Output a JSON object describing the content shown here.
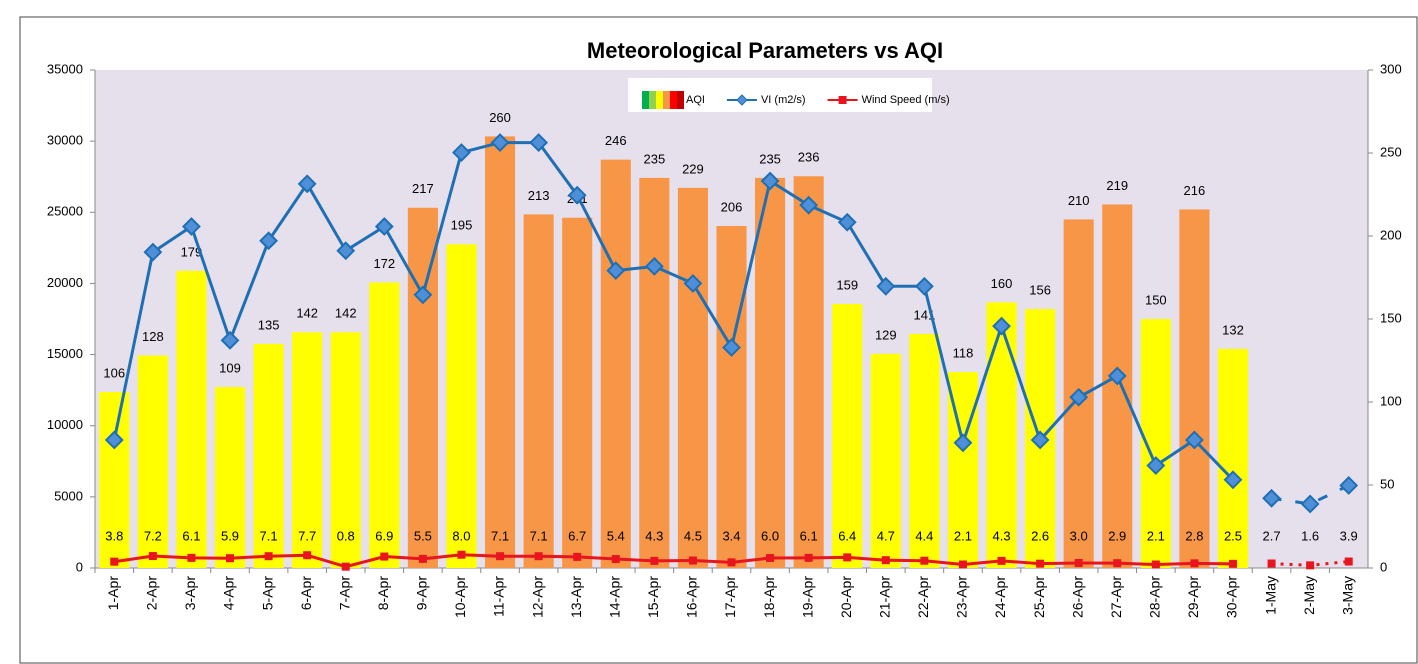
{
  "chart_data": {
    "type": "combo",
    "title": "Meteorological Parameters vs AQI",
    "categories": [
      "1-Apr",
      "2-Apr",
      "3-Apr",
      "4-Apr",
      "5-Apr",
      "6-Apr",
      "7-Apr",
      "8-Apr",
      "9-Apr",
      "10-Apr",
      "11-Apr",
      "12-Apr",
      "13-Apr",
      "14-Apr",
      "15-Apr",
      "16-Apr",
      "17-Apr",
      "18-Apr",
      "19-Apr",
      "20-Apr",
      "21-Apr",
      "22-Apr",
      "23-Apr",
      "24-Apr",
      "25-Apr",
      "26-Apr",
      "27-Apr",
      "28-Apr",
      "29-Apr",
      "30-Apr",
      "1-May",
      "2-May",
      "3-May"
    ],
    "ylim": [
      0,
      35000
    ],
    "yticks": [
      0,
      5000,
      10000,
      15000,
      20000,
      25000,
      30000,
      35000
    ],
    "y2lim": [
      0,
      300
    ],
    "y2ticks": [
      0,
      50,
      100,
      150,
      200,
      250,
      300
    ],
    "background": "#e6e0ec",
    "series": [
      {
        "name": "AQI",
        "type": "bar",
        "axis": "y2",
        "values": [
          106,
          128,
          179,
          109,
          135,
          142,
          142,
          172,
          217,
          195,
          260,
          213,
          211,
          246,
          235,
          229,
          206,
          235,
          236,
          159,
          129,
          141,
          118,
          160,
          156,
          210,
          219,
          150,
          216,
          132,
          null,
          null,
          null
        ],
        "colors": [
          "#ffff00",
          "#ffff00",
          "#ffff00",
          "#ffff00",
          "#ffff00",
          "#ffff00",
          "#ffff00",
          "#ffff00",
          "#f79646",
          "#ffff00",
          "#f79646",
          "#f79646",
          "#f79646",
          "#f79646",
          "#f79646",
          "#f79646",
          "#f79646",
          "#f79646",
          "#f79646",
          "#ffff00",
          "#ffff00",
          "#ffff00",
          "#ffff00",
          "#ffff00",
          "#ffff00",
          "#f79646",
          "#f79646",
          "#ffff00",
          "#f79646",
          "#ffff00",
          null,
          null,
          null
        ]
      },
      {
        "name": "VI (m2/s)",
        "type": "line",
        "color": "#1f6fb5",
        "marker": "diamond",
        "values": [
          9000,
          22200,
          24000,
          16000,
          23000,
          27000,
          22300,
          24000,
          19200,
          29200,
          29900,
          29900,
          26200,
          20900,
          21200,
          20000,
          15500,
          27200,
          25500,
          24300,
          19800,
          19800,
          8800,
          17000,
          9000,
          12000,
          13500,
          7200,
          9000,
          6200,
          4900,
          4500,
          5800
        ],
        "dashed": [
          false,
          false,
          false,
          false,
          false,
          false,
          false,
          false,
          false,
          false,
          false,
          false,
          false,
          false,
          false,
          false,
          false,
          false,
          false,
          false,
          false,
          false,
          false,
          false,
          false,
          false,
          false,
          false,
          false,
          false,
          true,
          true,
          true
        ]
      },
      {
        "name": "Wind Speed (m/s)",
        "type": "line",
        "axis": "y2",
        "color": "#e8141e",
        "marker": "square",
        "values": [
          3.8,
          7.2,
          6.1,
          5.9,
          7.1,
          7.7,
          0.8,
          6.9,
          5.5,
          8.0,
          7.1,
          7.1,
          6.7,
          5.4,
          4.3,
          4.5,
          3.4,
          6.0,
          6.1,
          6.4,
          4.7,
          4.4,
          2.1,
          4.3,
          2.6,
          3.0,
          2.9,
          2.1,
          2.8,
          2.5,
          2.7,
          1.6,
          3.9
        ],
        "value_labels": [
          "3.8",
          "7.2",
          "6.1",
          "5.9",
          "7.1",
          "7.7",
          "0.8",
          "6.9",
          "5.5",
          "8.0",
          "7.1",
          "7.1",
          "6.7",
          "5.4",
          "4.3",
          "4.5",
          "3.4",
          "6.0",
          "6.1",
          "6.4",
          "4.7",
          "4.4",
          "2.1",
          "4.3",
          "2.6",
          "3.0",
          "2.9",
          "2.1",
          "2.8",
          "2.5",
          "2.7",
          "1.6",
          "3.9"
        ],
        "dashed": [
          false,
          false,
          false,
          false,
          false,
          false,
          false,
          false,
          false,
          false,
          false,
          false,
          false,
          false,
          false,
          false,
          false,
          false,
          false,
          false,
          false,
          false,
          false,
          false,
          false,
          false,
          false,
          false,
          false,
          false,
          true,
          true,
          true
        ]
      }
    ]
  }
}
